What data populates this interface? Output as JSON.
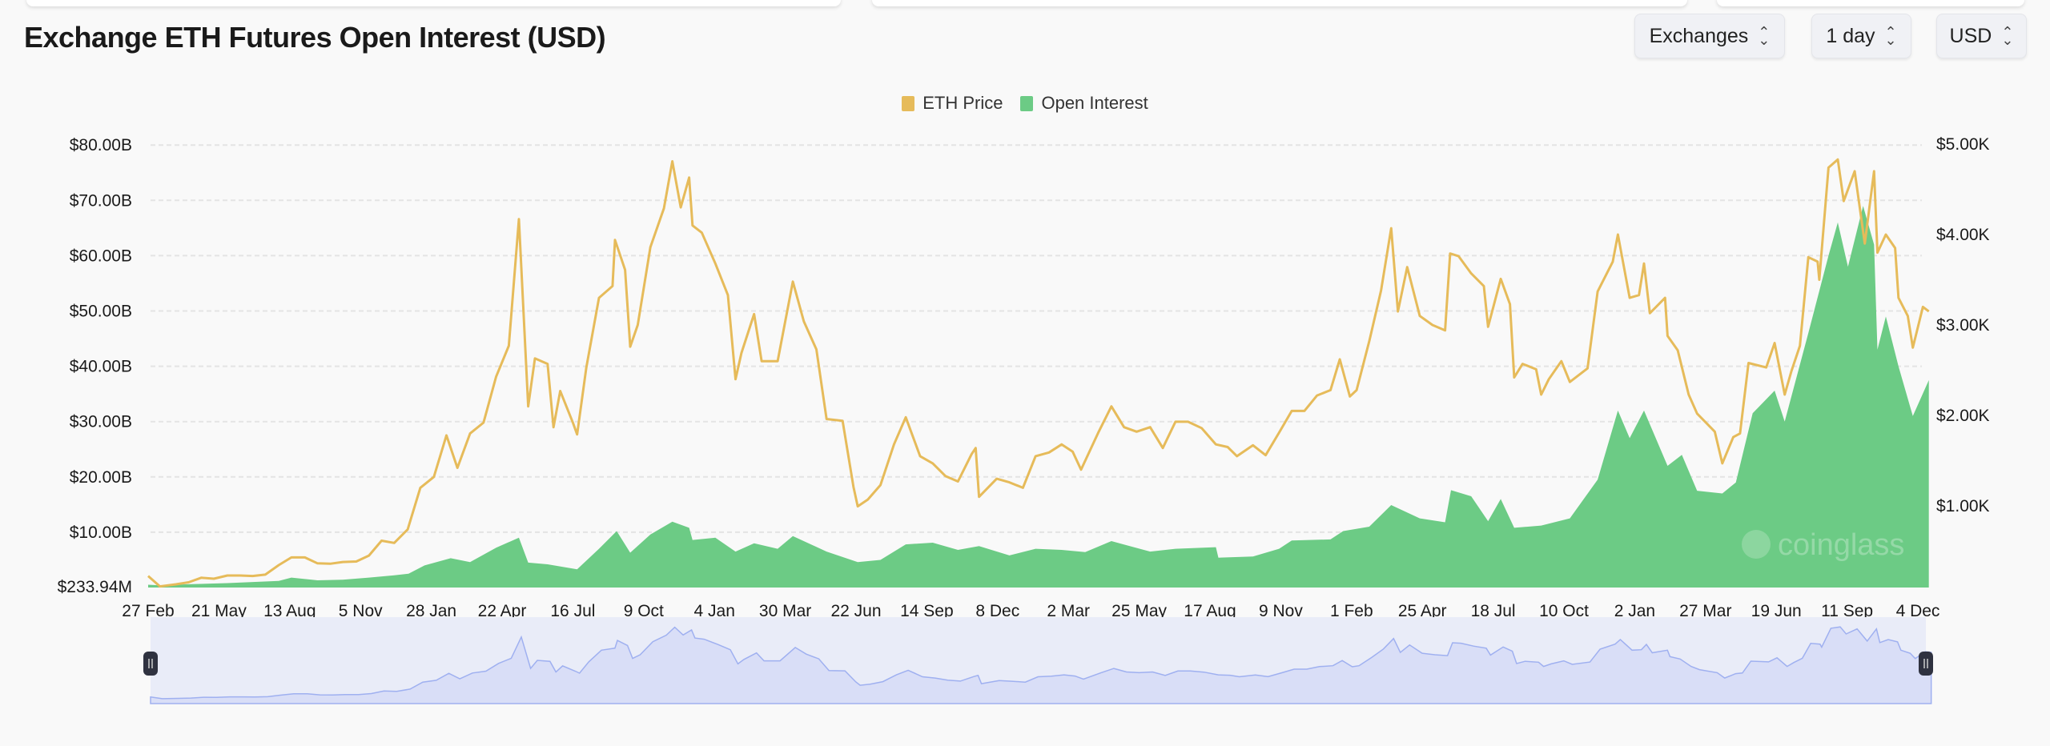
{
  "header": {
    "title": "Exchange ETH Futures Open Interest (USD)",
    "controls": [
      {
        "label": "Exchanges",
        "icon": "chevron-up-down-icon"
      },
      {
        "label": "1 day",
        "icon": "chevron-up-down-icon"
      },
      {
        "label": "USD",
        "icon": "chevron-up-down-icon"
      }
    ]
  },
  "watermark": "coinglass",
  "colors": {
    "eth_price": "#e6bb5a",
    "open_interest": "#6ccb85",
    "navigator_line": "#9fb0f0",
    "navigator_fill": "#d9def7",
    "navigator_bg": "#e9ecf8"
  },
  "chart_data": {
    "type": "line+area",
    "legend": {
      "position": "top-center",
      "items": [
        "ETH Price",
        "Open Interest"
      ]
    },
    "grid": true,
    "x_axis": {
      "type": "date",
      "tick_labels": [
        "27 Feb",
        "21 May",
        "13 Aug",
        "5 Nov",
        "28 Jan",
        "22 Apr",
        "16 Jul",
        "9 Oct",
        "4 Jan",
        "30 Mar",
        "22 Jun",
        "14 Sep",
        "8 Dec",
        "2 Mar",
        "25 May",
        "17 Aug",
        "9 Nov",
        "1 Feb",
        "25 Apr",
        "18 Jul",
        "10 Oct",
        "2 Jan",
        "27 Mar",
        "19 Jun",
        "11 Sep",
        "4 Dec"
      ],
      "range": [
        "2020-02-27",
        "2025-12-10"
      ]
    },
    "y_left": {
      "unit": "USD billions",
      "tick_labels": [
        "$80.00B",
        "$70.00B",
        "$60.00B",
        "$50.00B",
        "$40.00B",
        "$30.00B",
        "$20.00B",
        "$10.00B",
        "$233.94M"
      ],
      "range": [
        0.23394,
        80
      ]
    },
    "y_right": {
      "unit": "USD",
      "tick_labels": [
        "$5.00K",
        "$4.00K",
        "$3.00K",
        "$2.00K",
        "$1.00K"
      ],
      "range": [
        0,
        5000
      ]
    },
    "series": [
      {
        "name": "ETH Price",
        "type": "line",
        "axis": "right",
        "points": [
          [
            "2020-02-27",
            225
          ],
          [
            "2020-03-12",
            110
          ],
          [
            "2020-03-31",
            133
          ],
          [
            "2020-04-15",
            155
          ],
          [
            "2020-04-30",
            205
          ],
          [
            "2020-05-15",
            195
          ],
          [
            "2020-05-31",
            230
          ],
          [
            "2020-06-15",
            230
          ],
          [
            "2020-06-30",
            225
          ],
          [
            "2020-07-15",
            240
          ],
          [
            "2020-07-31",
            345
          ],
          [
            "2020-08-15",
            430
          ],
          [
            "2020-08-31",
            430
          ],
          [
            "2020-09-15",
            365
          ],
          [
            "2020-09-30",
            360
          ],
          [
            "2020-10-15",
            380
          ],
          [
            "2020-10-31",
            385
          ],
          [
            "2020-11-15",
            450
          ],
          [
            "2020-11-30",
            615
          ],
          [
            "2020-12-15",
            590
          ],
          [
            "2020-12-31",
            740
          ],
          [
            "2021-01-15",
            1200
          ],
          [
            "2021-01-31",
            1320
          ],
          [
            "2021-02-15",
            1780
          ],
          [
            "2021-02-28",
            1420
          ],
          [
            "2021-03-15",
            1800
          ],
          [
            "2021-03-31",
            1920
          ],
          [
            "2021-04-15",
            2430
          ],
          [
            "2021-04-30",
            2770
          ],
          [
            "2021-05-12",
            4170
          ],
          [
            "2021-05-23",
            2100
          ],
          [
            "2021-05-31",
            2630
          ],
          [
            "2021-06-15",
            2570
          ],
          [
            "2021-06-22",
            1870
          ],
          [
            "2021-06-30",
            2270
          ],
          [
            "2021-07-15",
            1920
          ],
          [
            "2021-07-20",
            1790
          ],
          [
            "2021-07-31",
            2530
          ],
          [
            "2021-08-15",
            3300
          ],
          [
            "2021-08-31",
            3430
          ],
          [
            "2021-09-03",
            3940
          ],
          [
            "2021-09-15",
            3610
          ],
          [
            "2021-09-21",
            2760
          ],
          [
            "2021-09-30",
            3000
          ],
          [
            "2021-10-15",
            3860
          ],
          [
            "2021-10-31",
            4290
          ],
          [
            "2021-11-10",
            4810
          ],
          [
            "2021-11-20",
            4300
          ],
          [
            "2021-11-30",
            4630
          ],
          [
            "2021-12-04",
            4100
          ],
          [
            "2021-12-15",
            4020
          ],
          [
            "2021-12-31",
            3680
          ],
          [
            "2022-01-15",
            3330
          ],
          [
            "2022-01-24",
            2400
          ],
          [
            "2022-01-31",
            2690
          ],
          [
            "2022-02-15",
            3120
          ],
          [
            "2022-02-24",
            2600
          ],
          [
            "2022-03-15",
            2600
          ],
          [
            "2022-04-02",
            3480
          ],
          [
            "2022-04-15",
            3040
          ],
          [
            "2022-04-30",
            2730
          ],
          [
            "2022-05-12",
            1960
          ],
          [
            "2022-05-31",
            1940
          ],
          [
            "2022-06-13",
            1210
          ],
          [
            "2022-06-18",
            995
          ],
          [
            "2022-06-30",
            1070
          ],
          [
            "2022-07-15",
            1230
          ],
          [
            "2022-07-31",
            1680
          ],
          [
            "2022-08-14",
            1980
          ],
          [
            "2022-08-31",
            1550
          ],
          [
            "2022-09-15",
            1470
          ],
          [
            "2022-09-30",
            1330
          ],
          [
            "2022-10-15",
            1270
          ],
          [
            "2022-10-31",
            1570
          ],
          [
            "2022-11-05",
            1640
          ],
          [
            "2022-11-09",
            1100
          ],
          [
            "2022-11-30",
            1300
          ],
          [
            "2022-12-15",
            1260
          ],
          [
            "2022-12-31",
            1200
          ],
          [
            "2023-01-15",
            1550
          ],
          [
            "2023-01-31",
            1590
          ],
          [
            "2023-02-15",
            1680
          ],
          [
            "2023-02-28",
            1600
          ],
          [
            "2023-03-10",
            1400
          ],
          [
            "2023-03-31",
            1820
          ],
          [
            "2023-04-15",
            2100
          ],
          [
            "2023-04-30",
            1870
          ],
          [
            "2023-05-15",
            1820
          ],
          [
            "2023-05-31",
            1870
          ],
          [
            "2023-06-15",
            1640
          ],
          [
            "2023-06-30",
            1930
          ],
          [
            "2023-07-15",
            1930
          ],
          [
            "2023-07-31",
            1860
          ],
          [
            "2023-08-17",
            1680
          ],
          [
            "2023-08-31",
            1650
          ],
          [
            "2023-09-11",
            1550
          ],
          [
            "2023-09-30",
            1670
          ],
          [
            "2023-10-15",
            1560
          ],
          [
            "2023-10-31",
            1810
          ],
          [
            "2023-11-15",
            2050
          ],
          [
            "2023-11-30",
            2050
          ],
          [
            "2023-12-15",
            2220
          ],
          [
            "2023-12-31",
            2280
          ],
          [
            "2024-01-11",
            2620
          ],
          [
            "2024-01-23",
            2210
          ],
          [
            "2024-01-31",
            2280
          ],
          [
            "2024-02-15",
            2820
          ],
          [
            "2024-02-29",
            3380
          ],
          [
            "2024-03-12",
            4070
          ],
          [
            "2024-03-20",
            3150
          ],
          [
            "2024-03-31",
            3640
          ],
          [
            "2024-04-15",
            3100
          ],
          [
            "2024-04-30",
            3000
          ],
          [
            "2024-05-15",
            2940
          ],
          [
            "2024-05-21",
            3790
          ],
          [
            "2024-05-31",
            3760
          ],
          [
            "2024-06-15",
            3570
          ],
          [
            "2024-06-30",
            3430
          ],
          [
            "2024-07-05",
            2980
          ],
          [
            "2024-07-20",
            3510
          ],
          [
            "2024-07-31",
            3230
          ],
          [
            "2024-08-05",
            2420
          ],
          [
            "2024-08-15",
            2570
          ],
          [
            "2024-08-31",
            2510
          ],
          [
            "2024-09-06",
            2230
          ],
          [
            "2024-09-15",
            2400
          ],
          [
            "2024-09-30",
            2600
          ],
          [
            "2024-10-10",
            2370
          ],
          [
            "2024-10-31",
            2520
          ],
          [
            "2024-11-12",
            3370
          ],
          [
            "2024-11-30",
            3700
          ],
          [
            "2024-12-06",
            4000
          ],
          [
            "2024-12-20",
            3300
          ],
          [
            "2024-12-31",
            3330
          ],
          [
            "2025-01-06",
            3680
          ],
          [
            "2025-01-13",
            3130
          ],
          [
            "2025-01-31",
            3300
          ],
          [
            "2025-02-03",
            2880
          ],
          [
            "2025-02-15",
            2720
          ],
          [
            "2025-02-28",
            2230
          ],
          [
            "2025-03-10",
            2020
          ],
          [
            "2025-03-31",
            1820
          ],
          [
            "2025-04-09",
            1470
          ],
          [
            "2025-04-22",
            1760
          ],
          [
            "2025-04-30",
            1800
          ],
          [
            "2025-05-10",
            2580
          ],
          [
            "2025-05-31",
            2530
          ],
          [
            "2025-06-10",
            2800
          ],
          [
            "2025-06-22",
            2230
          ],
          [
            "2025-06-30",
            2490
          ],
          [
            "2025-07-10",
            2770
          ],
          [
            "2025-07-20",
            3750
          ],
          [
            "2025-07-31",
            3700
          ],
          [
            "2025-08-02",
            3500
          ],
          [
            "2025-08-13",
            4740
          ],
          [
            "2025-08-24",
            4830
          ],
          [
            "2025-08-31",
            4370
          ],
          [
            "2025-09-13",
            4700
          ],
          [
            "2025-09-25",
            3900
          ],
          [
            "2025-10-06",
            4700
          ],
          [
            "2025-10-10",
            3800
          ],
          [
            "2025-10-20",
            4000
          ],
          [
            "2025-10-31",
            3850
          ],
          [
            "2025-11-04",
            3300
          ],
          [
            "2025-11-15",
            3100
          ],
          [
            "2025-11-21",
            2750
          ],
          [
            "2025-12-03",
            3200
          ],
          [
            "2025-12-10",
            3150
          ]
        ]
      },
      {
        "name": "Open Interest",
        "type": "area",
        "axis": "left",
        "unit": "USD billions",
        "points": [
          [
            "2020-02-27",
            0.5
          ],
          [
            "2020-03-12",
            0.4
          ],
          [
            "2020-04-15",
            0.6
          ],
          [
            "2020-05-31",
            0.8
          ],
          [
            "2020-07-31",
            1.2
          ],
          [
            "2020-08-15",
            1.8
          ],
          [
            "2020-09-15",
            1.3
          ],
          [
            "2020-10-15",
            1.4
          ],
          [
            "2020-11-15",
            1.8
          ],
          [
            "2020-12-15",
            2.2
          ],
          [
            "2021-01-01",
            2.5
          ],
          [
            "2021-01-20",
            4.0
          ],
          [
            "2021-02-20",
            5.3
          ],
          [
            "2021-03-15",
            4.6
          ],
          [
            "2021-04-15",
            7.2
          ],
          [
            "2021-05-12",
            9.0
          ],
          [
            "2021-05-23",
            4.5
          ],
          [
            "2021-06-15",
            4.2
          ],
          [
            "2021-07-20",
            3.3
          ],
          [
            "2021-08-15",
            7.0
          ],
          [
            "2021-09-05",
            10.2
          ],
          [
            "2021-09-21",
            6.3
          ],
          [
            "2021-10-15",
            9.6
          ],
          [
            "2021-11-10",
            11.9
          ],
          [
            "2021-11-30",
            10.8
          ],
          [
            "2021-12-04",
            8.6
          ],
          [
            "2021-12-31",
            9.0
          ],
          [
            "2022-01-24",
            6.5
          ],
          [
            "2022-02-15",
            8.0
          ],
          [
            "2022-03-15",
            7.0
          ],
          [
            "2022-04-02",
            9.3
          ],
          [
            "2022-05-12",
            6.5
          ],
          [
            "2022-06-18",
            4.6
          ],
          [
            "2022-07-15",
            5.0
          ],
          [
            "2022-08-14",
            7.8
          ],
          [
            "2022-09-15",
            8.1
          ],
          [
            "2022-10-15",
            6.8
          ],
          [
            "2022-11-09",
            7.5
          ],
          [
            "2022-12-15",
            5.8
          ],
          [
            "2023-01-15",
            7.0
          ],
          [
            "2023-02-15",
            6.8
          ],
          [
            "2023-03-15",
            6.4
          ],
          [
            "2023-04-15",
            8.4
          ],
          [
            "2023-05-31",
            6.5
          ],
          [
            "2023-06-30",
            7.0
          ],
          [
            "2023-08-17",
            7.3
          ],
          [
            "2023-08-20",
            5.4
          ],
          [
            "2023-09-30",
            5.6
          ],
          [
            "2023-10-31",
            7.0
          ],
          [
            "2023-11-15",
            8.5
          ],
          [
            "2023-12-31",
            8.7
          ],
          [
            "2024-01-15",
            10.2
          ],
          [
            "2024-02-15",
            11.0
          ],
          [
            "2024-03-12",
            14.9
          ],
          [
            "2024-04-15",
            12.5
          ],
          [
            "2024-05-15",
            11.8
          ],
          [
            "2024-05-22",
            17.6
          ],
          [
            "2024-06-15",
            16.5
          ],
          [
            "2024-07-05",
            12.0
          ],
          [
            "2024-07-20",
            16.0
          ],
          [
            "2024-08-05",
            10.8
          ],
          [
            "2024-09-06",
            11.2
          ],
          [
            "2024-10-10",
            12.5
          ],
          [
            "2024-11-12",
            19.5
          ],
          [
            "2024-12-06",
            32.0
          ],
          [
            "2024-12-20",
            27.0
          ],
          [
            "2025-01-06",
            32.0
          ],
          [
            "2025-02-03",
            22.0
          ],
          [
            "2025-02-20",
            24.0
          ],
          [
            "2025-03-10",
            17.5
          ],
          [
            "2025-04-09",
            17.0
          ],
          [
            "2025-04-25",
            19.0
          ],
          [
            "2025-05-15",
            31.5
          ],
          [
            "2025-06-10",
            35.6
          ],
          [
            "2025-06-22",
            30.0
          ],
          [
            "2025-07-20",
            46.0
          ],
          [
            "2025-08-13",
            60.0
          ],
          [
            "2025-08-24",
            66.0
          ],
          [
            "2025-09-05",
            58.0
          ],
          [
            "2025-09-23",
            69.0
          ],
          [
            "2025-10-06",
            62.0
          ],
          [
            "2025-10-10",
            43.0
          ],
          [
            "2025-10-20",
            49.0
          ],
          [
            "2025-11-04",
            40.0
          ],
          [
            "2025-11-21",
            31.0
          ],
          [
            "2025-12-10",
            37.5
          ]
        ]
      }
    ]
  }
}
